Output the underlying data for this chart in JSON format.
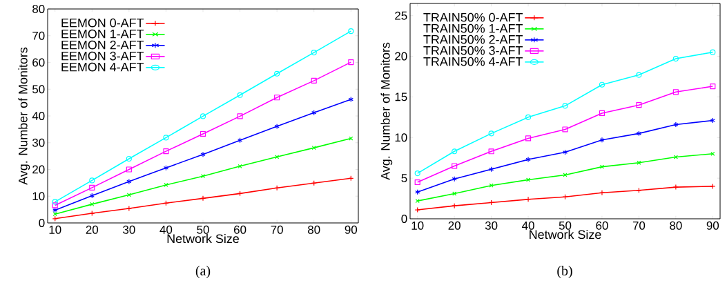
{
  "chart_data": [
    {
      "type": "line",
      "xlabel": "Network Size",
      "ylabel": "Avg. Number of Monitors",
      "annotations": [
        "(a)"
      ],
      "x": [
        10,
        20,
        30,
        40,
        50,
        60,
        70,
        80,
        90
      ],
      "xlim": [
        8,
        92
      ],
      "ylim": [
        0,
        80
      ],
      "xticks": [
        10,
        20,
        30,
        40,
        50,
        60,
        70,
        80,
        90
      ],
      "yticks": [
        0,
        10,
        20,
        30,
        40,
        50,
        60,
        70,
        80
      ],
      "legend": "top left",
      "grid": false,
      "line_style": "solid",
      "series": [
        {
          "name": "EEMON 0-AFT",
          "color": "#ff0000",
          "marker": "plus",
          "values": [
            1.6,
            3.6,
            5.4,
            7.4,
            9.2,
            11.0,
            13.1,
            14.9,
            16.7
          ]
        },
        {
          "name": "EEMON 1-AFT",
          "color": "#00ff00",
          "marker": "x",
          "values": [
            3.3,
            7.0,
            10.5,
            14.2,
            17.5,
            21.2,
            24.7,
            28.1,
            31.6
          ]
        },
        {
          "name": "EEMON 2-AFT",
          "color": "#0000ff",
          "marker": "cross",
          "values": [
            4.8,
            10.2,
            15.5,
            20.6,
            25.6,
            30.9,
            36.1,
            41.2,
            46.2
          ]
        },
        {
          "name": "EEMON 3-AFT",
          "color": "#ff00ff",
          "marker": "square",
          "values": [
            6.6,
            13.2,
            20.0,
            26.8,
            33.3,
            39.9,
            46.9,
            53.2,
            60.1
          ]
        },
        {
          "name": "EEMON 4-AFT",
          "color": "#00ffff",
          "marker": "circle",
          "values": [
            7.9,
            15.9,
            24.0,
            31.9,
            39.9,
            47.8,
            55.8,
            63.7,
            71.7
          ]
        }
      ]
    },
    {
      "type": "line",
      "xlabel": "Network Size",
      "ylabel": "Avg. Number of Monitors",
      "annotations": [
        "(b)"
      ],
      "x": [
        10,
        20,
        30,
        40,
        50,
        60,
        70,
        80,
        90
      ],
      "xlim": [
        8,
        92
      ],
      "ylim": [
        0,
        26.5
      ],
      "xticks": [
        10,
        20,
        30,
        40,
        50,
        60,
        70,
        80,
        90
      ],
      "yticks": [
        0,
        5,
        10,
        15,
        20,
        25
      ],
      "legend": "top left",
      "grid": false,
      "line_style": "solid",
      "series": [
        {
          "name": "TRAIN50% 0-AFT",
          "color": "#ff0000",
          "marker": "plus",
          "values": [
            1.1,
            1.6,
            2.0,
            2.4,
            2.7,
            3.2,
            3.5,
            3.9,
            4.0
          ]
        },
        {
          "name": "TRAIN50% 1-AFT",
          "color": "#00ff00",
          "marker": "x",
          "values": [
            2.2,
            3.1,
            4.1,
            4.8,
            5.4,
            6.4,
            6.9,
            7.6,
            8.0
          ]
        },
        {
          "name": "TRAIN50% 2-AFT",
          "color": "#0000ff",
          "marker": "cross",
          "values": [
            3.3,
            4.9,
            6.1,
            7.3,
            8.2,
            9.7,
            10.5,
            11.6,
            12.1
          ]
        },
        {
          "name": "TRAIN50% 3-AFT",
          "color": "#ff00ff",
          "marker": "square",
          "values": [
            4.5,
            6.5,
            8.3,
            9.9,
            11.0,
            13.0,
            14.0,
            15.6,
            16.3
          ]
        },
        {
          "name": "TRAIN50% 4-AFT",
          "color": "#00ffff",
          "marker": "circle",
          "values": [
            5.6,
            8.3,
            10.5,
            12.5,
            13.9,
            16.5,
            17.7,
            19.7,
            20.5
          ]
        }
      ]
    }
  ]
}
